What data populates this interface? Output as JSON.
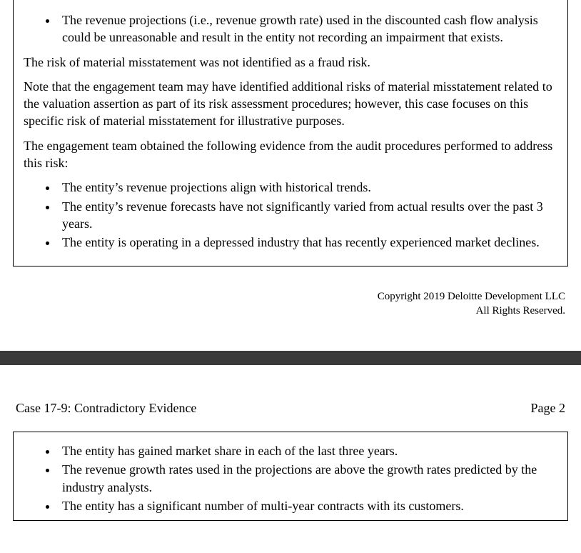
{
  "page1": {
    "box": {
      "top_bullets": [
        "The revenue projections (i.e., revenue growth rate) used in the discounted cash flow analysis could be unreasonable and result in the entity not recording an impairment that exists."
      ],
      "para1": "The risk of material misstatement was not identified as a fraud risk.",
      "para2": "Note that the engagement team may have identified additional risks of material misstatement related to the valuation assertion as part of its risk assessment procedures; however, this case focuses on this specific risk of material misstatement for illustrative purposes.",
      "para3": "The engagement team obtained the following evidence from the audit procedures performed to address this risk:",
      "evidence_bullets": [
        "The entity’s revenue projections align with historical trends.",
        "The entity’s revenue forecasts have not significantly varied from actual results over the past 3 years.",
        "The entity is operating in a depressed industry that has recently experienced market declines."
      ]
    },
    "copyright_line1": "Copyright 2019 Deloitte Development LLC",
    "copyright_line2": "All Rights Reserved."
  },
  "page2": {
    "header_title": "Case 17-9: Contradictory Evidence",
    "header_page": "Page 2",
    "box_bullets": [
      "The entity has gained market share in each of the last three years.",
      "The revenue growth rates used in the projections are above the growth rates predicted by the industry analysts.",
      "The entity has a significant number of multi-year contracts with its customers."
    ]
  }
}
